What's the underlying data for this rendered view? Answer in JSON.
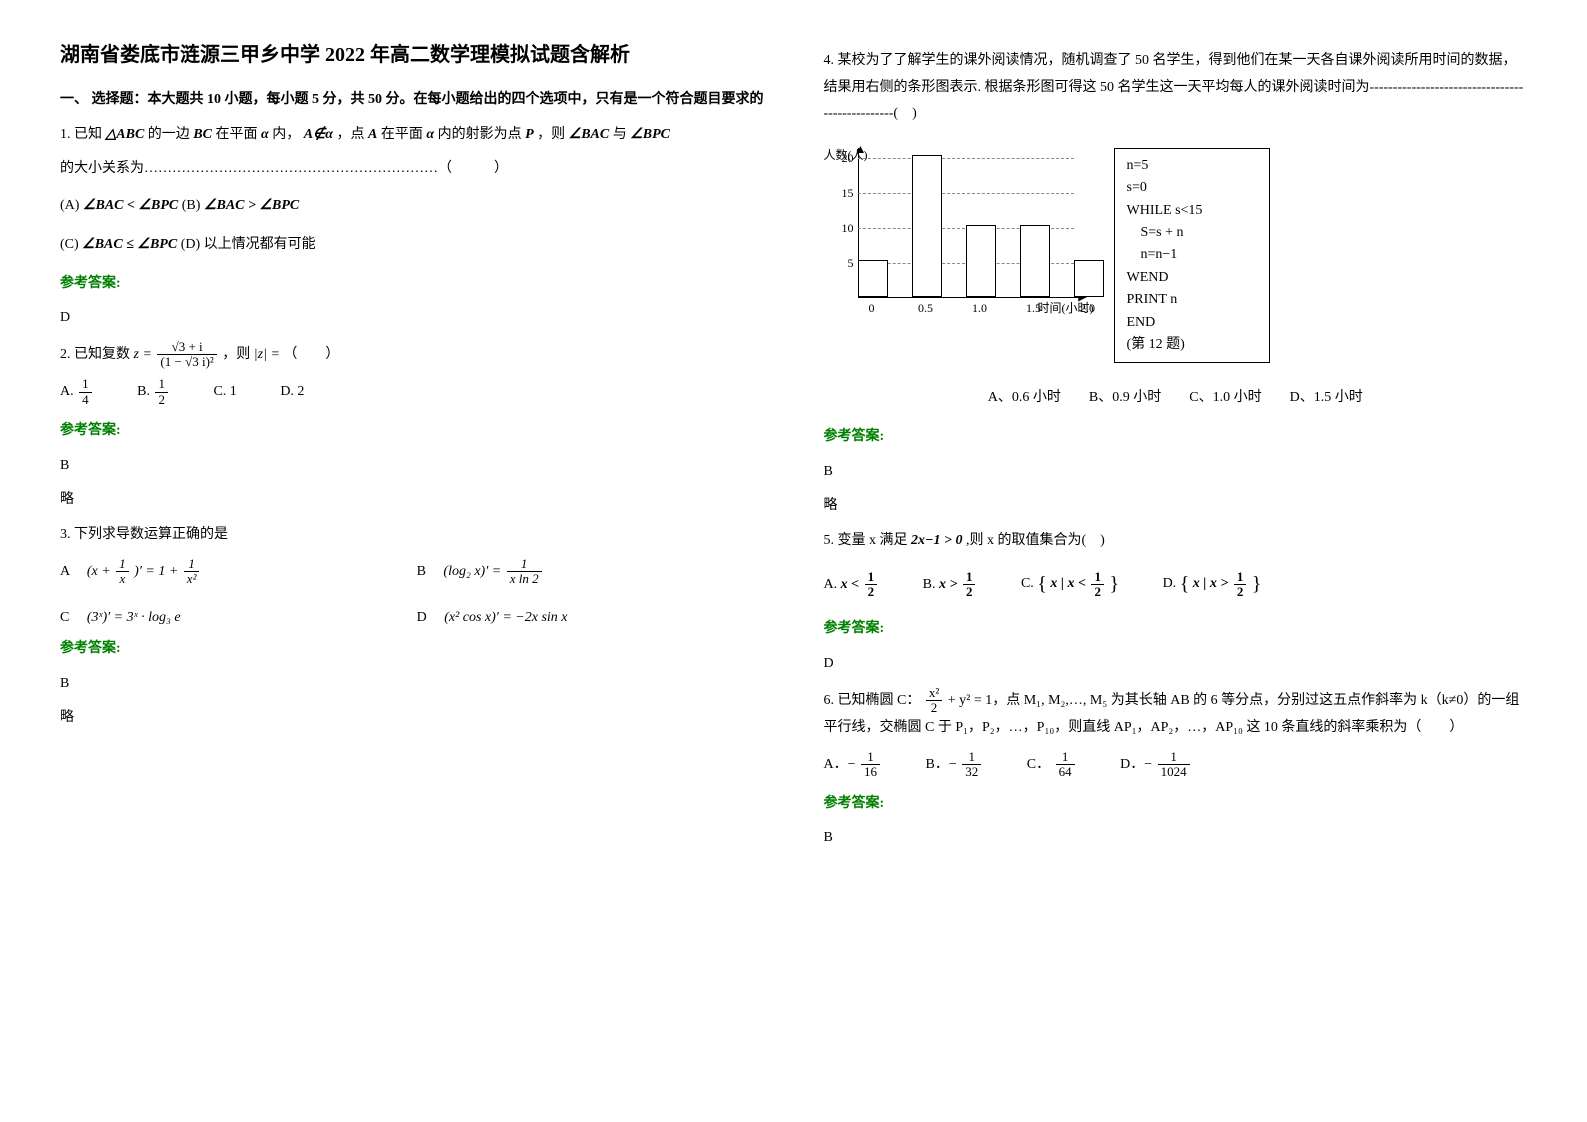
{
  "title": "湖南省娄底市涟源三甲乡中学 2022 年高二数学理模拟试题含解析",
  "section1_head": "一、 选择题：本大题共 10 小题，每小题 5 分，共 50 分。在每小题给出的四个选项中，只有是一个符合题目要求的",
  "q1": {
    "stem_a": "1. 已知",
    "tri": "△ABC",
    "stem_b": " 的一边 ",
    "bc": "BC",
    "stem_c": " 在平面 ",
    "alpha1": "α",
    "stem_d": " 内，",
    "acond": "A∉α",
    "stem_e": "，点 ",
    "a": "A",
    "stem_f": " 在平面 ",
    "alpha2": "α",
    "stem_g": " 内的射影为点 ",
    "p": "P",
    "stem_h": " ，则 ",
    "ang1": "∠BAC",
    "stem_i": " 与 ",
    "ang2": "∠BPC",
    "tail": "的大小关系为………………………………………………………（　　　）",
    "optA_pre": "(A) ",
    "optA": "∠BAC < ∠BPC",
    "optB_pre": "  (B) ",
    "optB": "∠BAC > ∠BPC",
    "optC_pre": "(C) ",
    "optC": "∠BAC ≤ ∠BPC",
    "optD_pre": "  (D) 以上情况都有可能",
    "answer_label": "参考答案:",
    "answer": "D"
  },
  "q2": {
    "stem_a": "2. 已知复数 ",
    "formula_lhs": "z =",
    "num": "√3 + i",
    "den": "(1 − √3 i)²",
    "stem_b": " ，则 ",
    "abs": "|z| =",
    "stem_c": "（　　）",
    "optA_pre": "A. ",
    "optA_num": "1",
    "optA_den": "4",
    "optB_pre": "B. ",
    "optB_num": "1",
    "optB_den": "2",
    "optC": "C. 1",
    "optD": "D. 2",
    "answer_label": "参考答案:",
    "answer": "B",
    "note": "略"
  },
  "q3": {
    "stem": "3. 下列求导数运算正确的是",
    "A_label": "A",
    "A_lhs": "(x +",
    "A_frac1_num": "1",
    "A_frac1_den": "x",
    "A_mid": ")′ = 1 +",
    "A_frac2_num": "1",
    "A_frac2_den": "x²",
    "B_label": "B",
    "B_lhs": "(log₂ x)′ =",
    "B_num": "1",
    "B_den": "x ln 2",
    "C_label": "C",
    "C_expr": "(3ˣ)′ = 3ˣ · log₃ e",
    "D_label": "D",
    "D_expr": "(x² cos x)′ = −2x sin x",
    "answer_label": "参考答案:",
    "answer": "B",
    "note": "略"
  },
  "q4": {
    "stem": "4. 某校为了了解学生的课外阅读情况，随机调查了 50 名学生，得到他们在某一天各自课外阅读所用时间的数据，结果用右侧的条形图表示. 根据条形图可得这 50 名学生这一天平均每人的课外阅读时间为------------------------------------------------(　)",
    "chart": {
      "ylabel": "人数(人)",
      "xlabel": "时间(小时)",
      "yticks": [
        5,
        10,
        15,
        20
      ],
      "xticks": [
        "0",
        "0.5",
        "1.0",
        "1.5",
        "2.0"
      ],
      "bars": [
        {
          "x": 0,
          "h": 5
        },
        {
          "x": 0.5,
          "h": 20
        },
        {
          "x": 1.0,
          "h": 10
        },
        {
          "x": 1.5,
          "h": 10
        },
        {
          "x": 2.0,
          "h": 5
        }
      ],
      "ymax": 20,
      "bar_color": "#ffffff",
      "border_color": "#000000",
      "grid_color": "#888888"
    },
    "code": {
      "l1": "n=5",
      "l2": "s=0",
      "l3": "WHILE s<15",
      "l4": "　S=s + n",
      "l5": "　n=n−1",
      "l6": "WEND",
      "l7": "PRINT n",
      "l8": "END",
      "caption": "(第 12 题)"
    },
    "options": "A、0.6 小时　　B、0.9 小时　　C、1.0 小时　　D、1.5 小时",
    "answer_label": "参考答案:",
    "answer": "B",
    "note": "略"
  },
  "q5": {
    "stem_a": "5. 变量 x 满足 ",
    "cond": "2x−1 > 0",
    "stem_b": ",则 x 的取值集合为(　)",
    "A_label": "A.",
    "A_expr_pre": "x <",
    "A_num": "1",
    "A_den": "2",
    "B_label": "B.",
    "B_expr_pre": "x >",
    "B_num": "1",
    "B_den": "2",
    "C_label": "C.",
    "C_set_inner_pre": "x | x <",
    "C_num": "1",
    "C_den": "2",
    "D_label": "D.",
    "D_set_inner_pre": "x | x >",
    "D_num": "1",
    "D_den": "2",
    "answer_label": "参考答案:",
    "answer": "D"
  },
  "q6": {
    "stem_a": "6. 已知椭圆 C：",
    "frac_num": "x²",
    "frac_den": "2",
    "stem_b": " + y² = 1，点 M₁, M₂,…, M₅ 为其长轴 AB 的 6 等分点，分别过这五点作斜率为 k（k≠0）的一组平行线，交椭圆 C 于 P₁，P₂，…，P₁₀，则直线 AP₁，AP₂，…，AP₁₀ 这 10 条直线的斜率乘积为（　　）",
    "A_pre": "A．−",
    "A_num": "1",
    "A_den": "16",
    "B_pre": "B．−",
    "B_num": "1",
    "B_den": "32",
    "C_pre": "C．",
    "C_num": "1",
    "C_den": "64",
    "D_pre": "D．−",
    "D_num": "1",
    "D_den": "1024",
    "answer_label": "参考答案:",
    "answer": "B"
  }
}
